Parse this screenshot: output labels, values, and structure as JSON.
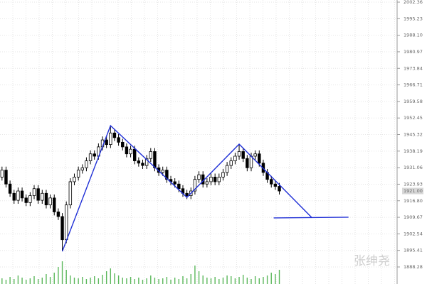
{
  "chart_data": {
    "type": "candlestick",
    "open": [
      1927,
      1930,
      1924,
      1920,
      1917,
      1921,
      1918,
      1916,
      1919,
      1922,
      1917,
      1920,
      1915,
      1918,
      1912,
      1910,
      1900,
      1915,
      1925,
      1927,
      1930,
      1931,
      1934,
      1937,
      1936,
      1940,
      1943,
      1941,
      1946,
      1944,
      1942,
      1940,
      1937,
      1939,
      1934,
      1933,
      1932,
      1935,
      1938,
      1931,
      1929,
      1930,
      1926,
      1925,
      1924,
      1922,
      1920,
      1919,
      1921,
      1926,
      1928,
      1924,
      1925,
      1927,
      1925,
      1927,
      1929,
      1932,
      1934,
      1936,
      1938,
      1935,
      1931,
      1936,
      1937,
      1933,
      1929,
      1926,
      1924,
      1923
    ],
    "high": [
      1931.5,
      1931.5,
      1925.5,
      1921.5,
      1922.5,
      1922.5,
      1919.5,
      1920.5,
      1923.5,
      1923.5,
      1921.5,
      1921.5,
      1919.5,
      1919.5,
      1913.5,
      1911.5,
      1916.5,
      1926.5,
      1928.5,
      1931.5,
      1932.5,
      1935.5,
      1938.5,
      1938.5,
      1941.5,
      1944.5,
      1944.5,
      1949,
      1947.5,
      1945.5,
      1943.5,
      1941.5,
      1940.5,
      1940.5,
      1935.5,
      1934.5,
      1936.5,
      1939.5,
      1939.5,
      1932.5,
      1931.5,
      1931.5,
      1927.5,
      1926.5,
      1925.5,
      1923.5,
      1921.5,
      1922.5,
      1927.5,
      1929.5,
      1929.5,
      1926.5,
      1928.5,
      1928.5,
      1928.5,
      1930.5,
      1933.5,
      1935.5,
      1937.5,
      1941,
      1939.5,
      1936.5,
      1937.5,
      1938.5,
      1938.5,
      1934.5,
      1930.5,
      1927.5,
      1925.5,
      1924.5
    ],
    "low": [
      1925.5,
      1922.5,
      1918.5,
      1915.5,
      1915.5,
      1916.5,
      1914.5,
      1914.5,
      1917.5,
      1915.5,
      1915.5,
      1913.5,
      1913.5,
      1910.5,
      1908.5,
      1895,
      1898.5,
      1913.5,
      1923.5,
      1925.5,
      1928.5,
      1929.5,
      1932.5,
      1934.5,
      1934.5,
      1938.5,
      1939.5,
      1939.5,
      1942.5,
      1940.5,
      1938.5,
      1935.5,
      1935.5,
      1932.5,
      1931.5,
      1930.5,
      1930.5,
      1933.5,
      1929.5,
      1927.5,
      1927.5,
      1924.5,
      1923.5,
      1922.5,
      1920.5,
      1918.5,
      1917.5,
      1917.5,
      1919.5,
      1924.5,
      1922.5,
      1922.5,
      1923.5,
      1923.5,
      1923.5,
      1925.5,
      1927.5,
      1930.5,
      1932.5,
      1934.5,
      1933.5,
      1929.5,
      1929.5,
      1934.5,
      1931.5,
      1927.5,
      1924.5,
      1922.5,
      1921.5,
      1919.5
    ],
    "close": [
      1930,
      1924,
      1920,
      1917,
      1921,
      1918,
      1916,
      1919,
      1922,
      1917,
      1920,
      1915,
      1918,
      1912,
      1910,
      1900,
      1915,
      1925,
      1927,
      1930,
      1931,
      1934,
      1937,
      1936,
      1940,
      1943,
      1941,
      1946,
      1944,
      1942,
      1940,
      1937,
      1939,
      1934,
      1933,
      1932,
      1935,
      1938,
      1931,
      1929,
      1930,
      1926,
      1925,
      1924,
      1922,
      1920,
      1919,
      1921,
      1926,
      1928,
      1924,
      1925,
      1927,
      1925,
      1927,
      1929,
      1932,
      1934,
      1936,
      1938,
      1935,
      1931,
      1936,
      1937,
      1933,
      1929,
      1926,
      1924,
      1923,
      1921
    ],
    "volume": [
      8,
      6,
      10,
      7,
      12,
      9,
      6,
      8,
      11,
      7,
      9,
      14,
      10,
      16,
      24,
      32,
      20,
      12,
      9,
      8,
      10,
      7,
      9,
      11,
      8,
      13,
      18,
      22,
      15,
      12,
      9,
      8,
      10,
      7,
      9,
      6,
      8,
      12,
      9,
      7,
      8,
      10,
      6,
      9,
      7,
      11,
      8,
      14,
      26,
      18,
      12,
      9,
      8,
      10,
      7,
      9,
      12,
      11,
      8,
      10,
      13,
      9,
      7,
      11,
      8,
      10,
      12,
      16,
      14,
      20
    ],
    "volume_color": "#5cb85c",
    "volume_ylim": [
      0,
      40
    ],
    "up_color": "#ffffff",
    "down_color": "#000000",
    "xlim": [
      -0.5,
      98.3
    ],
    "ylim": [
      1880.94,
      2003.28
    ],
    "yticks": [
      2002.36,
      1995.23,
      {
        "value": 1988.1,
        "label": "1988.10"
      },
      1980.97,
      1973.84,
      1966.71,
      1959.58,
      1952.45,
      1945.32,
      1938.19,
      1931.06,
      1923.93,
      {
        "value": 1916.8,
        "label": "1916.80"
      },
      1909.67,
      1902.54,
      1895.41,
      1888.28
    ],
    "grid": true,
    "trend_lines": [
      {
        "color": "#1f2fd6",
        "x": [
          15,
          27,
          46,
          59,
          77
        ],
        "y": [
          1895,
          1949.15,
          1918.26,
          1941.2,
          1909.7
        ]
      },
      {
        "color": "#1f2fd6",
        "x": [
          67.6,
          86.2
        ],
        "y": [
          1909.4,
          1909.7
        ]
      }
    ],
    "last_price_label": "1921.00",
    "watermark": "张绅尧"
  }
}
